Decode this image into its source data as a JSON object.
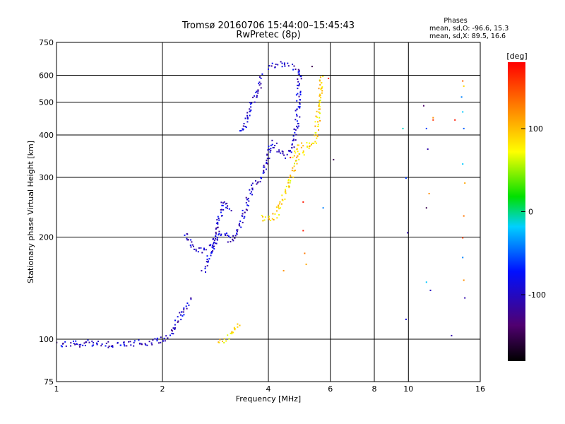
{
  "chart_data": {
    "type": "scatter",
    "title": "Tromsø 20160706 15:44:00–15:45:43",
    "subtitle": "RwPretec (8p)",
    "xlabel": "Frequency [MHz]",
    "ylabel": "Stationary phase Virtual Height [km]",
    "x_scale": "log",
    "y_scale": "log",
    "xlim": [
      1,
      16
    ],
    "ylim": [
      75,
      750
    ],
    "x_ticks": [
      1,
      2,
      4,
      6,
      8,
      10,
      16
    ],
    "x_tick_labels": [
      "1",
      "2",
      "4",
      "6",
      "8",
      "10",
      "16"
    ],
    "y_ticks": [
      75,
      100,
      200,
      300,
      400,
      500,
      600,
      750
    ],
    "y_tick_labels": [
      "75",
      "100",
      "200",
      "300",
      "400",
      "500",
      "600",
      "750"
    ],
    "grid": true,
    "phases_info": {
      "heading": "Phases",
      "line_o": "mean, sd,O: -96.6, 15.3",
      "line_x": "mean, sd,X:  89.5, 16.6"
    },
    "colorbar": {
      "label": "[deg]",
      "range": [
        -180,
        180
      ],
      "ticks": [
        100,
        0,
        -100
      ],
      "tick_labels": [
        "100",
        "0",
        "-100"
      ]
    },
    "series": [
      {
        "name": "O",
        "phase": -96.6,
        "color": "#1530e8",
        "traces": [
          [
            [
              1.0,
              96
            ],
            [
              1.05,
              97
            ],
            [
              1.12,
              99
            ],
            [
              1.18,
              95
            ],
            [
              1.22,
              98
            ],
            [
              1.3,
              97
            ],
            [
              1.4,
              97
            ],
            [
              1.5,
              97
            ],
            [
              1.6,
              97
            ],
            [
              1.7,
              98
            ],
            [
              1.8,
              98
            ],
            [
              1.9,
              99
            ],
            [
              2.0,
              100
            ],
            [
              2.05,
              101
            ],
            [
              2.1,
              104
            ],
            [
              2.15,
              108
            ],
            [
              2.2,
              113
            ],
            [
              2.25,
              118
            ],
            [
              2.3,
              124
            ],
            [
              2.35,
              128
            ],
            [
              2.4,
              132
            ]
          ],
          [
            [
              2.3,
              205
            ],
            [
              2.38,
              195
            ],
            [
              2.45,
              186
            ],
            [
              2.55,
              184
            ],
            [
              2.65,
              185
            ],
            [
              2.72,
              188
            ],
            [
              2.8,
              195
            ],
            [
              2.85,
              210
            ],
            [
              2.9,
              230
            ],
            [
              2.95,
              250
            ],
            [
              3.0,
              255
            ],
            [
              3.05,
              250
            ],
            [
              3.1,
              240
            ]
          ],
          [
            [
              2.6,
              160
            ],
            [
              2.7,
              175
            ],
            [
              2.8,
              200
            ],
            [
              2.9,
              205
            ],
            [
              3.0,
              205
            ],
            [
              3.1,
              195
            ],
            [
              3.2,
              200
            ],
            [
              3.3,
              215
            ],
            [
              3.4,
              235
            ],
            [
              3.5,
              265
            ],
            [
              3.6,
              285
            ],
            [
              3.7,
              295
            ],
            [
              3.8,
              300
            ],
            [
              3.9,
              320
            ],
            [
              4.0,
              360
            ],
            [
              4.1,
              380
            ],
            [
              4.2,
              375
            ],
            [
              4.3,
              360
            ],
            [
              4.4,
              355
            ],
            [
              4.5,
              350
            ],
            [
              4.6,
              360
            ],
            [
              4.7,
              380
            ],
            [
              4.8,
              430
            ],
            [
              4.85,
              520
            ],
            [
              4.9,
              640
            ]
          ],
          [
            [
              3.3,
              410
            ],
            [
              3.4,
              425
            ],
            [
              3.5,
              470
            ],
            [
              3.6,
              510
            ],
            [
              3.7,
              540
            ],
            [
              3.8,
              580
            ],
            [
              3.85,
              600
            ]
          ],
          [
            [
              4.0,
              640
            ],
            [
              4.2,
              650
            ],
            [
              4.4,
              645
            ],
            [
              4.6,
              640
            ],
            [
              4.75,
              630
            ]
          ]
        ]
      },
      {
        "name": "X",
        "phase": 89.5,
        "color": "#f0e820",
        "traces": [
          [
            [
              2.9,
              97
            ],
            [
              3.0,
              100
            ],
            [
              3.1,
              103
            ],
            [
              3.2,
              108
            ],
            [
              3.3,
              112
            ]
          ],
          [
            [
              3.8,
              230
            ],
            [
              4.0,
              225
            ],
            [
              4.2,
              235
            ],
            [
              4.4,
              265
            ],
            [
              4.6,
              300
            ],
            [
              4.8,
              340
            ],
            [
              5.0,
              360
            ],
            [
              5.2,
              370
            ],
            [
              5.4,
              385
            ],
            [
              5.5,
              440
            ],
            [
              5.6,
              520
            ],
            [
              5.65,
              610
            ]
          ],
          [
            [
              4.7,
              350
            ],
            [
              4.9,
              375
            ],
            [
              5.1,
              385
            ]
          ]
        ]
      },
      {
        "name": "scattered",
        "points": [
          [
            9.6,
            420,
            -10
          ],
          [
            9.8,
            300,
            -60
          ],
          [
            9.9,
            207,
            -110
          ],
          [
            9.8,
            115,
            -90
          ],
          [
            11.0,
            490,
            -140
          ],
          [
            11.2,
            420,
            -60
          ],
          [
            11.3,
            365,
            -110
          ],
          [
            11.2,
            245,
            -150
          ],
          [
            11.4,
            270,
            120
          ],
          [
            11.2,
            148,
            -20
          ],
          [
            11.5,
            140,
            -100
          ],
          [
            11.7,
            445,
            160
          ],
          [
            11.7,
            452,
            120
          ],
          [
            13.2,
            103,
            -110
          ],
          [
            13.5,
            445,
            170
          ],
          [
            14.2,
            580,
            140
          ],
          [
            14.3,
            560,
            90
          ],
          [
            14.1,
            520,
            -40
          ],
          [
            14.2,
            470,
            -20
          ],
          [
            14.3,
            420,
            -50
          ],
          [
            14.2,
            330,
            -20
          ],
          [
            14.4,
            290,
            110
          ],
          [
            14.3,
            232,
            130
          ],
          [
            14.2,
            175,
            -40
          ],
          [
            14.3,
            150,
            120
          ],
          [
            14.4,
            133,
            -110
          ],
          [
            14.2,
            200,
            150
          ],
          [
            5.0,
            255,
            170
          ],
          [
            5.0,
            210,
            170
          ],
          [
            5.05,
            180,
            130
          ],
          [
            5.1,
            167,
            110
          ],
          [
            6.1,
            340,
            -150
          ],
          [
            5.9,
            590,
            170
          ],
          [
            5.7,
            245,
            -40
          ],
          [
            4.4,
            160,
            120
          ],
          [
            4.6,
            345,
            200
          ],
          [
            5.3,
            640,
            -150
          ]
        ]
      }
    ]
  }
}
